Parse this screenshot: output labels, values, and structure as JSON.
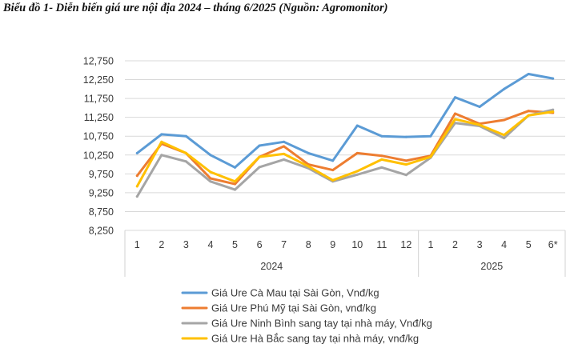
{
  "chart_data": {
    "type": "line",
    "title": "Biểu đồ 1- Diễn biến giá ure nội địa 2024 – tháng 6/2025 (Nguồn: Agromonitor)",
    "y_ticks": [
      "8,250",
      "8,750",
      "9,250",
      "9,750",
      "10,250",
      "10,750",
      "11,250",
      "11,750",
      "12,250",
      "12,750"
    ],
    "ylim": [
      8250,
      12750
    ],
    "grid": true,
    "categories": [
      "1",
      "2",
      "3",
      "4",
      "5",
      "6",
      "7",
      "8",
      "9",
      "10",
      "11",
      "12",
      "1",
      "2",
      "3",
      "4",
      "5",
      "6*"
    ],
    "groups": [
      {
        "label": "2024",
        "start": 0,
        "end": 11
      },
      {
        "label": "2025",
        "start": 12,
        "end": 17
      }
    ],
    "legend_position": "bottom",
    "series": [
      {
        "name": "Giá Ure Cà Mau tại Sài Gòn, Vnđ/kg",
        "color": "#5b9bd5",
        "values": [
          10300,
          10800,
          10750,
          10250,
          9920,
          10500,
          10600,
          10300,
          10100,
          11030,
          10750,
          10730,
          10750,
          11780,
          11530,
          12000,
          12400,
          12280
        ]
      },
      {
        "name": "Giá Ure Phú Mỹ tại Sài Gòn, vnđ/kg",
        "color": "#ed7d31",
        "values": [
          9700,
          10550,
          10300,
          9630,
          9480,
          10200,
          10480,
          10000,
          9850,
          10300,
          10230,
          10100,
          10230,
          11350,
          11080,
          11180,
          11420,
          11370
        ]
      },
      {
        "name": "Giá Ure Ninh Bình sang tay tại nhà máy, Vnđ/kg",
        "color": "#a5a5a5",
        "values": [
          9150,
          10250,
          10080,
          9550,
          9330,
          9930,
          10130,
          9900,
          9550,
          9730,
          9920,
          9720,
          10180,
          11100,
          11020,
          10700,
          11300,
          11450
        ]
      },
      {
        "name": "Giá Ure Hà Bắc sang tay tại nhà máy, vnđ/kg",
        "color": "#ffc000",
        "values": [
          9420,
          10600,
          10300,
          9800,
          9550,
          10200,
          10280,
          9950,
          9580,
          9820,
          10130,
          10000,
          10200,
          11200,
          11050,
          10780,
          11300,
          11400
        ]
      }
    ]
  }
}
